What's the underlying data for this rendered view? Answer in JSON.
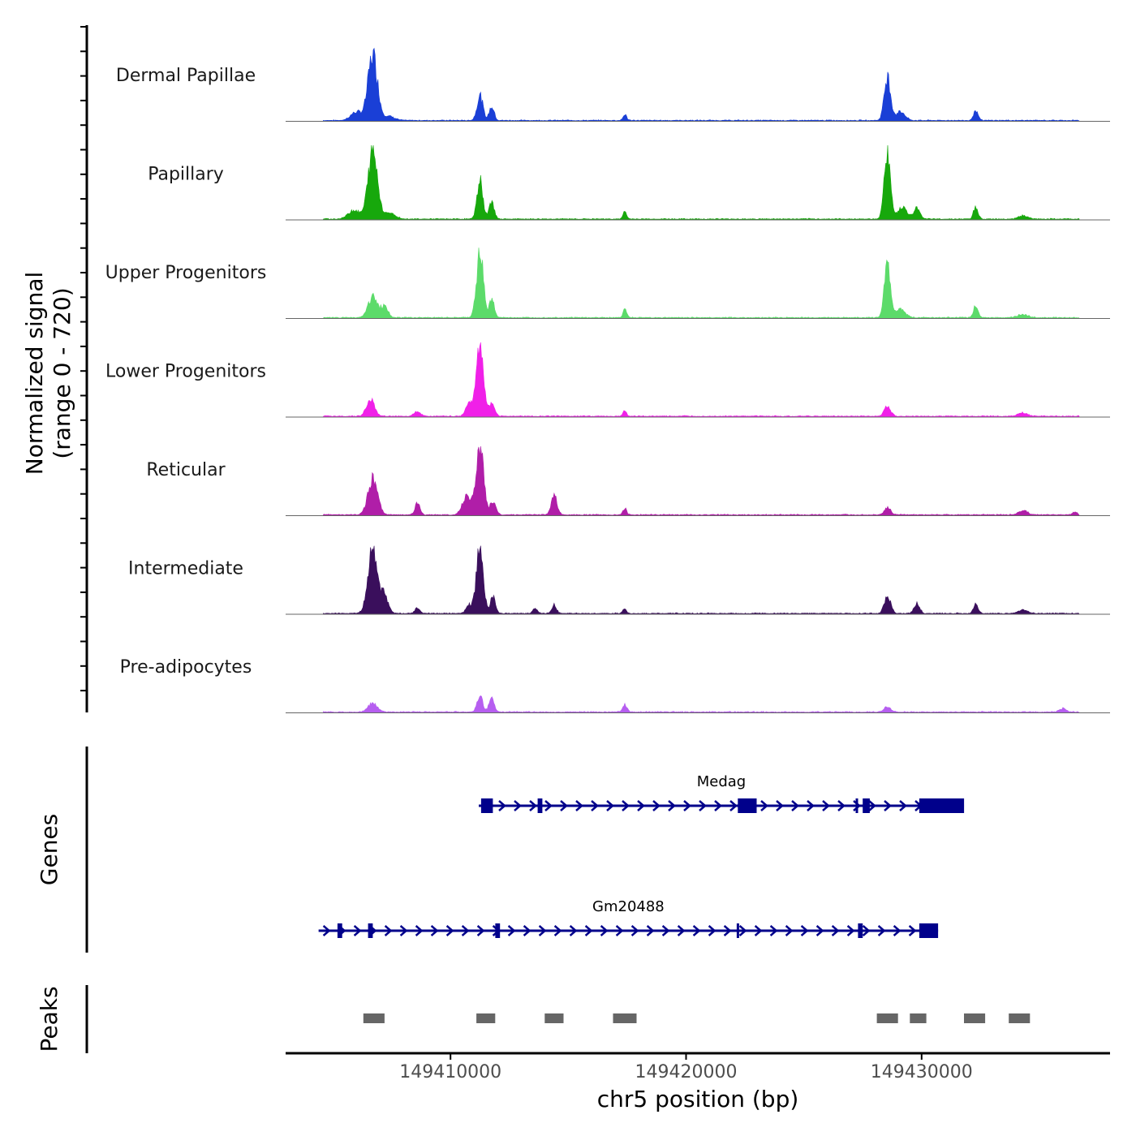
{
  "chart_data": {
    "type": "area",
    "title": "",
    "xlabel": "chr5 position (bp)",
    "ylabel": "Normalized signal\n(range 0 - 720)",
    "ylabel_lines": [
      "Normalized signal",
      "(range 0 - 720)"
    ],
    "xlim": [
      149403000,
      149438000
    ],
    "signal_extent": [
      149404600,
      149436700
    ],
    "ylim": [
      0,
      720
    ],
    "x_ticks": [
      149410000,
      149420000,
      149430000
    ],
    "x_tick_labels": [
      "149410000",
      "149420000",
      "149430000"
    ],
    "series": [
      {
        "name": "Dermal Papillae",
        "color": "#1a3fd6",
        "peaks": [
          {
            "pos": 149406700,
            "height": 0.95,
            "width": 420
          },
          {
            "pos": 149406000,
            "height": 0.12,
            "width": 500
          },
          {
            "pos": 149407400,
            "height": 0.06,
            "width": 500
          },
          {
            "pos": 149411250,
            "height": 0.36,
            "width": 260
          },
          {
            "pos": 149411750,
            "height": 0.2,
            "width": 220
          },
          {
            "pos": 149417400,
            "height": 0.09,
            "width": 160
          },
          {
            "pos": 149428550,
            "height": 0.63,
            "width": 280
          },
          {
            "pos": 149429100,
            "height": 0.13,
            "width": 400
          },
          {
            "pos": 149432300,
            "height": 0.15,
            "width": 200
          }
        ]
      },
      {
        "name": "Papillary",
        "color": "#17a80c",
        "peaks": [
          {
            "pos": 149406700,
            "height": 0.98,
            "width": 420
          },
          {
            "pos": 149405900,
            "height": 0.13,
            "width": 500
          },
          {
            "pos": 149407400,
            "height": 0.09,
            "width": 500
          },
          {
            "pos": 149411250,
            "height": 0.55,
            "width": 260
          },
          {
            "pos": 149411750,
            "height": 0.26,
            "width": 220
          },
          {
            "pos": 149417400,
            "height": 0.1,
            "width": 160
          },
          {
            "pos": 149428550,
            "height": 0.96,
            "width": 280
          },
          {
            "pos": 149429200,
            "height": 0.18,
            "width": 400
          },
          {
            "pos": 149429800,
            "height": 0.18,
            "width": 250
          },
          {
            "pos": 149432300,
            "height": 0.17,
            "width": 200
          },
          {
            "pos": 149434300,
            "height": 0.05,
            "width": 400
          }
        ]
      },
      {
        "name": "Upper Progenitors",
        "color": "#5cdb6a",
        "peaks": [
          {
            "pos": 149406700,
            "height": 0.3,
            "width": 420
          },
          {
            "pos": 149407200,
            "height": 0.16,
            "width": 300
          },
          {
            "pos": 149411250,
            "height": 0.95,
            "width": 300
          },
          {
            "pos": 149411750,
            "height": 0.28,
            "width": 220
          },
          {
            "pos": 149417400,
            "height": 0.13,
            "width": 160
          },
          {
            "pos": 149428550,
            "height": 0.74,
            "width": 280
          },
          {
            "pos": 149429100,
            "height": 0.13,
            "width": 400
          },
          {
            "pos": 149432300,
            "height": 0.18,
            "width": 200
          },
          {
            "pos": 149434300,
            "height": 0.04,
            "width": 500
          }
        ]
      },
      {
        "name": "Lower Progenitors",
        "color": "#f020e8",
        "peaks": [
          {
            "pos": 149406600,
            "height": 0.25,
            "width": 350
          },
          {
            "pos": 149408600,
            "height": 0.07,
            "width": 300
          },
          {
            "pos": 149411250,
            "height": 1.0,
            "width": 320
          },
          {
            "pos": 149410800,
            "height": 0.2,
            "width": 300
          },
          {
            "pos": 149411750,
            "height": 0.18,
            "width": 260
          },
          {
            "pos": 149417400,
            "height": 0.08,
            "width": 160
          },
          {
            "pos": 149428550,
            "height": 0.15,
            "width": 280
          },
          {
            "pos": 149434300,
            "height": 0.05,
            "width": 400
          }
        ]
      },
      {
        "name": "Reticular",
        "color": "#b01ea8",
        "peaks": [
          {
            "pos": 149406700,
            "height": 0.52,
            "width": 420
          },
          {
            "pos": 149408600,
            "height": 0.17,
            "width": 220
          },
          {
            "pos": 149411250,
            "height": 1.0,
            "width": 320
          },
          {
            "pos": 149410700,
            "height": 0.28,
            "width": 380
          },
          {
            "pos": 149411800,
            "height": 0.18,
            "width": 260
          },
          {
            "pos": 149414400,
            "height": 0.28,
            "width": 260
          },
          {
            "pos": 149417400,
            "height": 0.09,
            "width": 160
          },
          {
            "pos": 149428550,
            "height": 0.1,
            "width": 280
          },
          {
            "pos": 149434300,
            "height": 0.06,
            "width": 400
          },
          {
            "pos": 149436500,
            "height": 0.04,
            "width": 200
          }
        ]
      },
      {
        "name": "Intermediate",
        "color": "#3a0f5c",
        "peaks": [
          {
            "pos": 149406700,
            "height": 0.92,
            "width": 420
          },
          {
            "pos": 149407200,
            "height": 0.25,
            "width": 320
          },
          {
            "pos": 149408600,
            "height": 0.08,
            "width": 220
          },
          {
            "pos": 149411250,
            "height": 1.0,
            "width": 300
          },
          {
            "pos": 149410800,
            "height": 0.12,
            "width": 280
          },
          {
            "pos": 149411800,
            "height": 0.25,
            "width": 220
          },
          {
            "pos": 149413600,
            "height": 0.08,
            "width": 200
          },
          {
            "pos": 149414400,
            "height": 0.12,
            "width": 200
          },
          {
            "pos": 149417400,
            "height": 0.07,
            "width": 160
          },
          {
            "pos": 149428550,
            "height": 0.26,
            "width": 280
          },
          {
            "pos": 149429800,
            "height": 0.15,
            "width": 250
          },
          {
            "pos": 149432300,
            "height": 0.13,
            "width": 200
          },
          {
            "pos": 149434300,
            "height": 0.05,
            "width": 400
          }
        ]
      },
      {
        "name": "Pre-adipocytes",
        "color": "#b65ef0",
        "peaks": [
          {
            "pos": 149406700,
            "height": 0.12,
            "width": 420
          },
          {
            "pos": 149411250,
            "height": 0.25,
            "width": 240
          },
          {
            "pos": 149411750,
            "height": 0.22,
            "width": 220
          },
          {
            "pos": 149417400,
            "height": 0.1,
            "width": 200
          },
          {
            "pos": 149428550,
            "height": 0.08,
            "width": 280
          },
          {
            "pos": 149436000,
            "height": 0.05,
            "width": 300
          }
        ]
      }
    ],
    "genes_track_label": "Genes",
    "genes": [
      {
        "name": "Medag",
        "color": "#00008b",
        "start": 149411200,
        "end": 149431800,
        "strand": "+",
        "exons": [
          [
            149411300,
            149411800
          ],
          [
            149413700,
            149413900
          ],
          [
            149422200,
            149423000
          ],
          [
            149427200,
            149427300
          ],
          [
            149427500,
            149427800
          ],
          [
            149429900,
            149431800
          ]
        ]
      },
      {
        "name": "Gm20488",
        "color": "#00008b",
        "start": 149404400,
        "end": 149430700,
        "strand": "+",
        "exons": [
          [
            149405200,
            149405400
          ],
          [
            149406500,
            149406700
          ],
          [
            149411900,
            149412100
          ],
          [
            149422150,
            149422200
          ],
          [
            149427300,
            149427500
          ],
          [
            149429900,
            149430700
          ]
        ]
      }
    ],
    "peaks_track_label": "Peaks",
    "peak_color": "#666666",
    "peak_regions": [
      [
        149406300,
        149407200
      ],
      [
        149411100,
        149411900
      ],
      [
        149414000,
        149414800
      ],
      [
        149416900,
        149417900
      ],
      [
        149428100,
        149429000
      ],
      [
        149429500,
        149430200
      ],
      [
        149431800,
        149432700
      ],
      [
        149433700,
        149434600
      ]
    ]
  }
}
